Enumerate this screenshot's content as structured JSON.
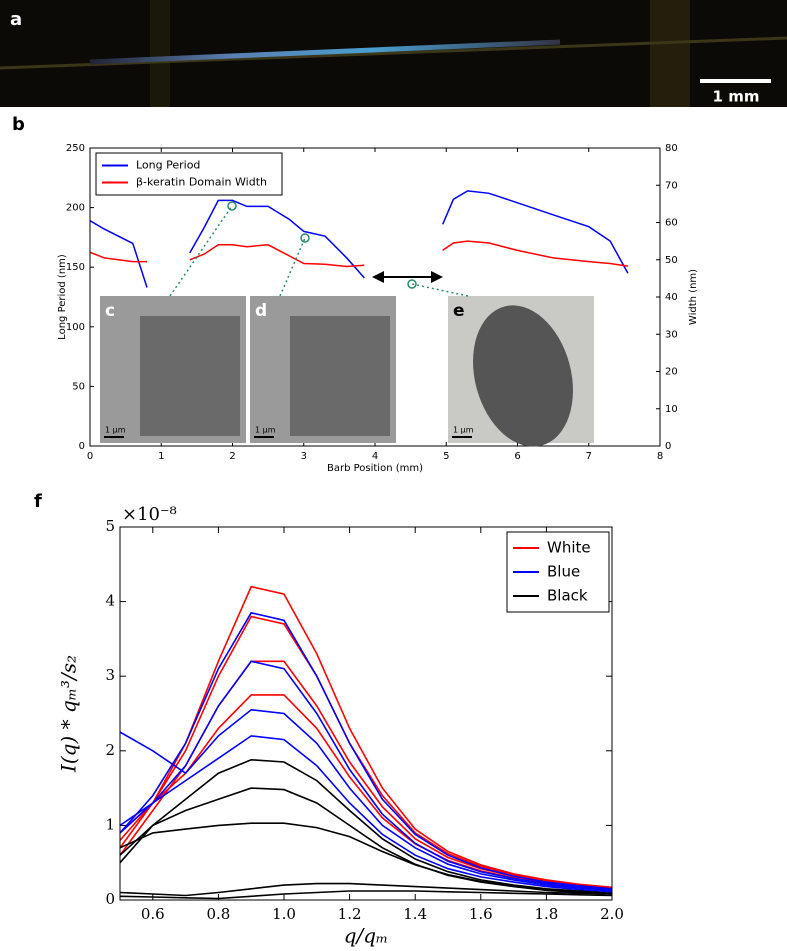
{
  "panel_a": {
    "label": "a",
    "scale_bar": "1 mm"
  },
  "chart_data": [
    {
      "type": "line",
      "label": "b",
      "xlabel": "Barb Position (mm)",
      "ylabel": "Long Period (nm)",
      "y2label": "Width (nm)",
      "x": [
        0,
        0.2,
        0.4,
        0.6,
        0.8,
        1.1,
        1.4,
        1.6,
        1.8,
        2.0,
        2.2,
        2.5,
        2.8,
        3.0,
        3.3,
        3.6,
        3.85,
        4.4,
        4.95,
        5.1,
        5.3,
        5.6,
        6.0,
        6.5,
        7.0,
        7.3,
        7.55
      ],
      "series": [
        {
          "name": "Long Period",
          "color": "#0000ff",
          "values": [
            189,
            182,
            176,
            170,
            133,
            null,
            162,
            183,
            206,
            206,
            201,
            201,
            190,
            180,
            176,
            158,
            141,
            null,
            186,
            207,
            214,
            212,
            204,
            194,
            184,
            172,
            145
          ]
        },
        {
          "name": "β-keratin Domain Width",
          "color": "#ff0000",
          "axis": "y2",
          "values": [
            52,
            50.5,
            50,
            49.5,
            49.5,
            null,
            50,
            51.5,
            54,
            54,
            53.5,
            54,
            51,
            49,
            48.8,
            48.2,
            48.5,
            null,
            52.5,
            54.5,
            55,
            54.5,
            52.5,
            50.5,
            49.5,
            49,
            48.3
          ]
        }
      ],
      "xlim": [
        0,
        8
      ],
      "xticks": [
        0,
        1,
        2,
        3,
        4,
        5,
        6,
        7,
        8
      ],
      "ylim": [
        0,
        250
      ],
      "yticks": [
        0,
        50,
        100,
        150,
        200,
        250
      ],
      "y2lim": [
        0,
        80
      ],
      "y2ticks": [
        0,
        10,
        20,
        30,
        40,
        50,
        60,
        70,
        80
      ],
      "legend": "upper left",
      "insets": [
        {
          "label": "c",
          "scale": "1 µm"
        },
        {
          "label": "d",
          "scale": "1 µm"
        },
        {
          "label": "e",
          "scale": "1 µm"
        }
      ]
    },
    {
      "type": "line",
      "label": "f",
      "xlabel": "q/qₘ",
      "ylabel": "I(q) * qₘ³/s₂",
      "y_offset_label": "×10⁻⁸",
      "x": [
        0.5,
        0.6,
        0.7,
        0.8,
        0.9,
        1.0,
        1.1,
        1.2,
        1.3,
        1.4,
        1.5,
        1.6,
        1.7,
        1.8,
        1.9,
        2.0
      ],
      "series": [
        {
          "name": "White",
          "color": "#ff0000",
          "curves": [
            [
              0.7,
              1.3,
              2.1,
              3.2,
              4.2,
              4.1,
              3.3,
              2.3,
              1.5,
              0.95,
              0.65,
              0.47,
              0.35,
              0.27,
              0.21,
              0.17
            ],
            [
              0.8,
              1.3,
              2.0,
              3.0,
              3.8,
              3.7,
              3.0,
              2.1,
              1.4,
              0.9,
              0.62,
              0.45,
              0.34,
              0.26,
              0.2,
              0.16
            ],
            [
              0.6,
              1.2,
              1.8,
              2.6,
              3.2,
              3.2,
              2.6,
              1.85,
              1.25,
              0.82,
              0.57,
              0.42,
              0.32,
              0.25,
              0.19,
              0.15
            ],
            [
              0.9,
              1.3,
              1.7,
              2.3,
              2.75,
              2.75,
              2.3,
              1.65,
              1.1,
              0.75,
              0.53,
              0.39,
              0.3,
              0.23,
              0.18,
              0.14
            ]
          ]
        },
        {
          "name": "Blue",
          "color": "#0000ff",
          "curves": [
            [
              2.25,
              2.0,
              1.7,
              2.2,
              2.55,
              2.5,
              2.1,
              1.5,
              1.0,
              0.7,
              0.48,
              0.35,
              0.27,
              0.2,
              0.16,
              0.13
            ],
            [
              0.9,
              1.4,
              2.1,
              3.1,
              3.85,
              3.75,
              3.0,
              2.1,
              1.35,
              0.88,
              0.6,
              0.43,
              0.32,
              0.24,
              0.19,
              0.15
            ],
            [
              1.0,
              1.3,
              1.8,
              2.6,
              3.2,
              3.1,
              2.5,
              1.75,
              1.15,
              0.76,
              0.52,
              0.38,
              0.29,
              0.22,
              0.17,
              0.13
            ],
            [
              0.9,
              1.3,
              1.6,
              1.9,
              2.2,
              2.15,
              1.8,
              1.3,
              0.88,
              0.6,
              0.42,
              0.31,
              0.24,
              0.18,
              0.14,
              0.11
            ]
          ]
        },
        {
          "name": "Black",
          "color": "#000000",
          "curves": [
            [
              0.6,
              1.0,
              1.35,
              1.7,
              1.88,
              1.85,
              1.6,
              1.2,
              0.82,
              0.55,
              0.38,
              0.27,
              0.2,
              0.15,
              0.12,
              0.09
            ],
            [
              0.5,
              1.0,
              1.2,
              1.35,
              1.5,
              1.48,
              1.3,
              1.0,
              0.7,
              0.48,
              0.33,
              0.24,
              0.18,
              0.13,
              0.1,
              0.08
            ],
            [
              0.7,
              0.9,
              0.95,
              1.0,
              1.03,
              1.03,
              0.97,
              0.85,
              0.65,
              0.47,
              0.34,
              0.25,
              0.19,
              0.14,
              0.11,
              0.08
            ],
            [
              0.1,
              0.08,
              0.06,
              0.1,
              0.15,
              0.2,
              0.22,
              0.22,
              0.2,
              0.18,
              0.16,
              0.14,
              0.12,
              0.1,
              0.09,
              0.08
            ],
            [
              0.05,
              0.04,
              0.03,
              0.02,
              0.05,
              0.08,
              0.1,
              0.12,
              0.12,
              0.12,
              0.11,
              0.1,
              0.09,
              0.08,
              0.07,
              0.06
            ]
          ]
        }
      ],
      "xlim": [
        0.5,
        2.0
      ],
      "xticks": [
        0.6,
        0.8,
        {
          "value": 1,
          "label": "1.0"
        },
        1.2,
        1.4,
        1.6,
        1.8,
        {
          "value": 2,
          "label": "2.0"
        }
      ],
      "ylim": [
        0,
        5
      ],
      "yticks": [
        0,
        1,
        2,
        3,
        4,
        5
      ],
      "legend": "upper right"
    }
  ]
}
